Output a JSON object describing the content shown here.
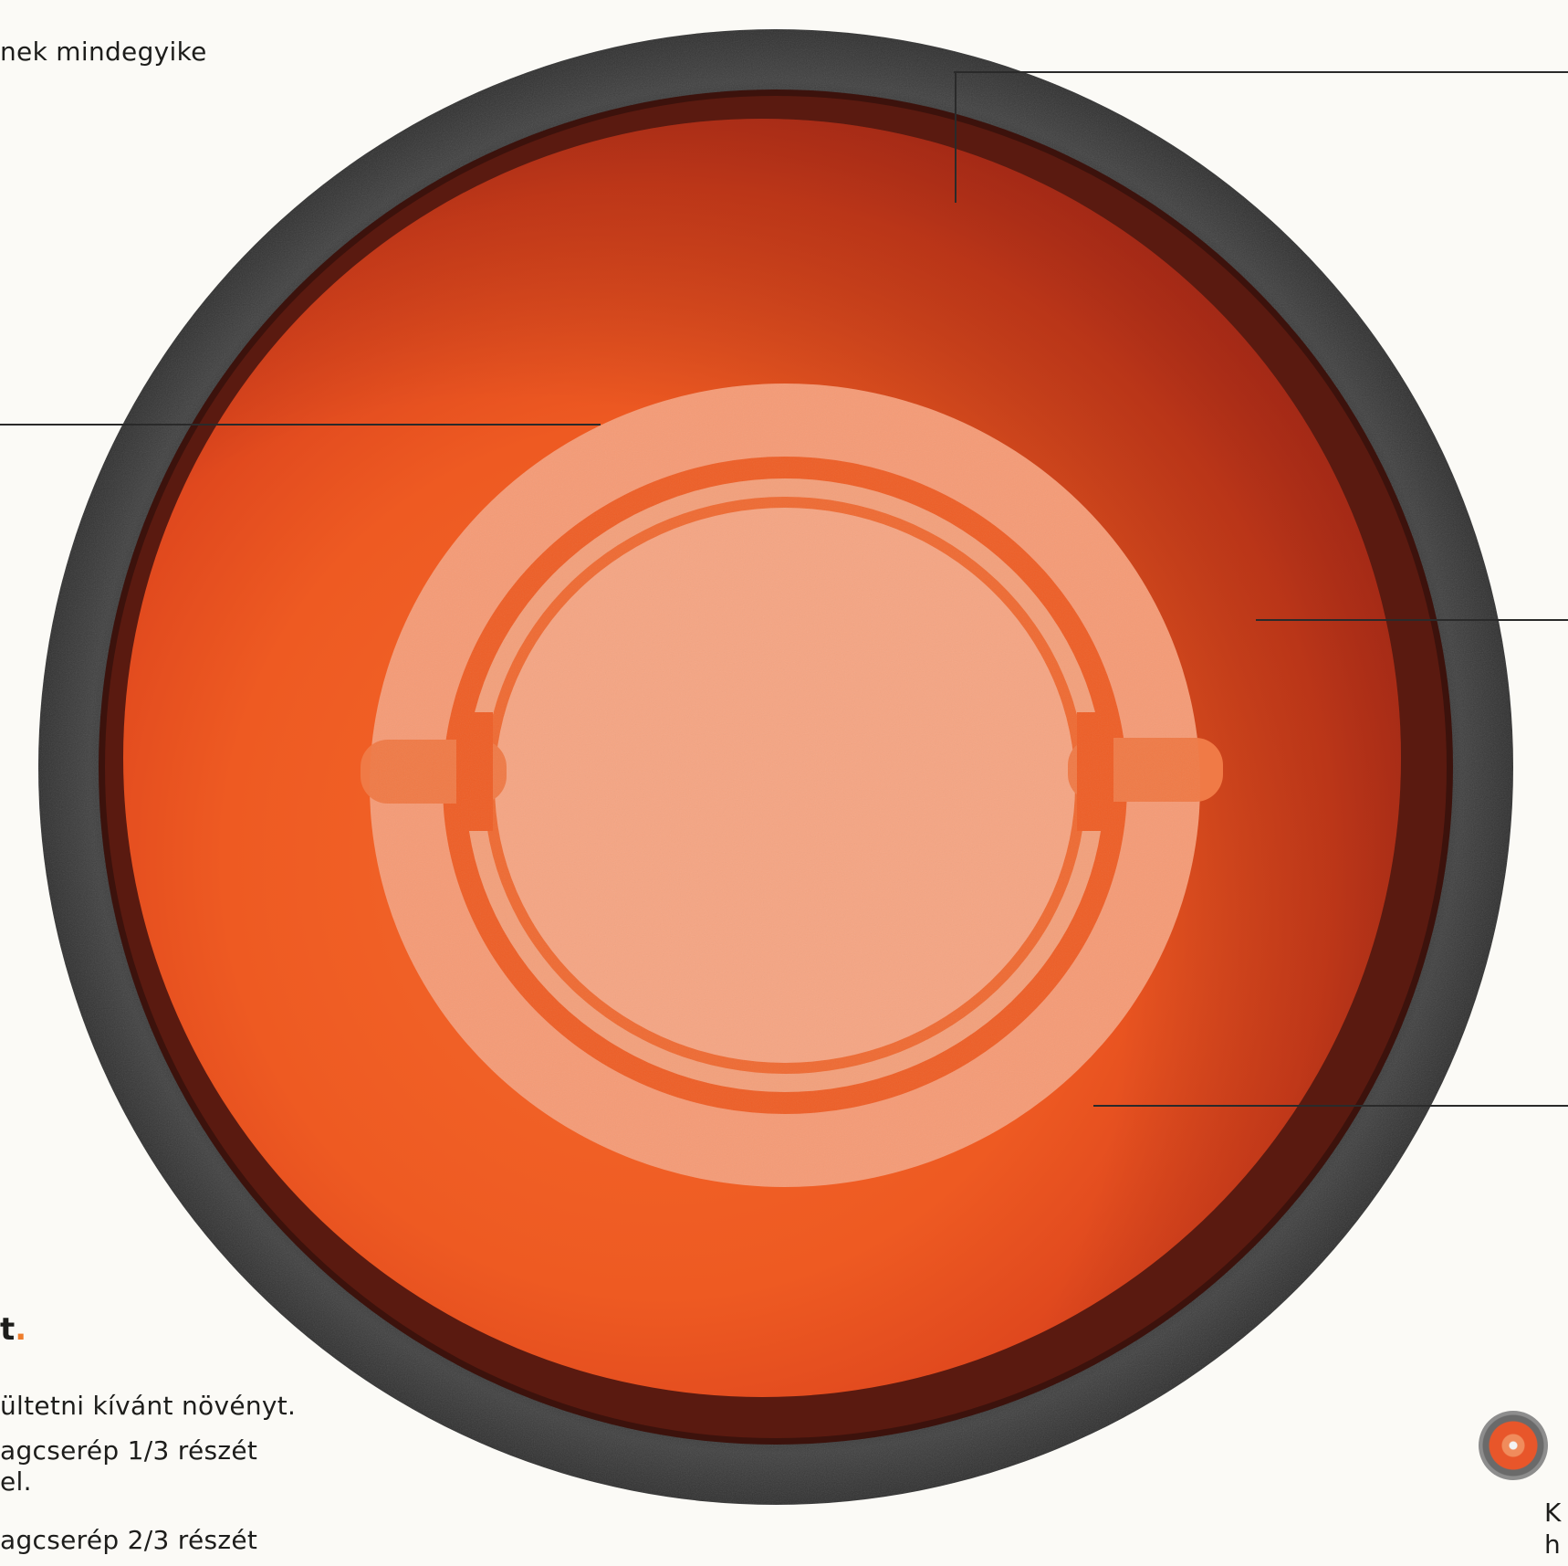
{
  "text": {
    "top_fragment": "nek mindegyike",
    "heading_fragment": "t",
    "heading_dot": ".",
    "step_line_1": "ültetni kívánt növényt.",
    "step_line_2": "agcserép 1/3 részét",
    "step_line_3": "el.",
    "step_line_4": "agcserép 2/3 részét",
    "right_fragment_1": "K",
    "right_fragment_2": "h"
  },
  "colors": {
    "background": "#fbfaf6",
    "pot_rim": "#3a3a3a",
    "pot_inner_dark": "#4a1a10",
    "pot_terracotta": "#ee5a22",
    "pot_highlight": "#f5b08c",
    "accent_dot": "#ef7d2c"
  },
  "icons": {
    "mini_pot": "flowerpot-top-view-icon"
  }
}
